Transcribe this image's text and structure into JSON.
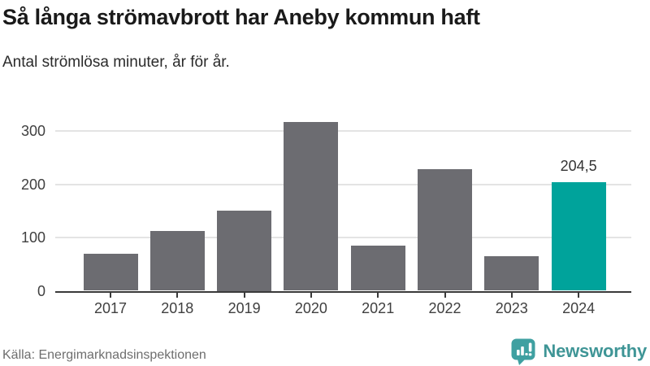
{
  "header": {
    "title": "Så långa strömavbrott har Aneby kommun haft",
    "subtitle": "Antal strömlösa minuter, år för år."
  },
  "chart_data": {
    "type": "bar",
    "title": "Så långa strömavbrott har Aneby kommun haft",
    "subtitle": "Antal strömlösa minuter, år för år.",
    "categories": [
      "2017",
      "2018",
      "2019",
      "2020",
      "2021",
      "2022",
      "2023",
      "2024"
    ],
    "values": [
      69,
      112,
      150,
      317,
      84,
      228,
      65,
      204.5
    ],
    "xlabel": "",
    "ylabel": "",
    "ylim": [
      0,
      330
    ],
    "yticks": [
      0,
      100,
      200,
      300
    ],
    "grid": "horizontal",
    "legend": "none",
    "highlight_index": 7,
    "highlight_label": "204,5",
    "bar_color": "#6c6c71",
    "highlight_color": "#00a39b",
    "gridline_color": "#e4e4e4",
    "axis_color": "#3a3a3a"
  },
  "footer": {
    "source": "Källa: Energimarknadsinspektionen",
    "brand": "Newsworthy",
    "brand_color": "#3f9596"
  }
}
